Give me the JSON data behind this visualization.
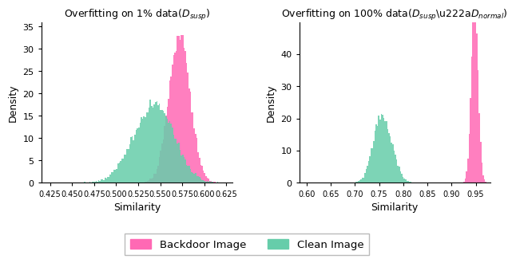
{
  "title_left": "Overfitting on 1% data($D_{susp}$)",
  "title_right": "Overfitting on 100% data($D_{susp}$∪$D_{normal}$)",
  "xlabel": "Similarity",
  "ylabel": "Density",
  "color_backdoor": "#FF69B4",
  "color_clean": "#66CDAA",
  "alpha": 0.85,
  "left_xlim": [
    0.415,
    0.632
  ],
  "left_ylim": [
    0,
    36
  ],
  "right_xlim": [
    0.585,
    0.98
  ],
  "right_ylim": [
    0,
    50
  ],
  "left_xticks": [
    0.425,
    0.45,
    0.475,
    0.5,
    0.525,
    0.55,
    0.575,
    0.6,
    0.625
  ],
  "right_xticks": [
    0.6,
    0.65,
    0.7,
    0.75,
    0.8,
    0.85,
    0.9,
    0.95
  ],
  "left_yticks": [
    0,
    5,
    10,
    15,
    20,
    25,
    30,
    35
  ],
  "right_yticks": [
    0,
    10,
    20,
    30,
    40
  ],
  "legend_backdoor": "Backdoor Image",
  "legend_clean": "Clean Image",
  "n_samples": 20000,
  "n_bins": 150
}
